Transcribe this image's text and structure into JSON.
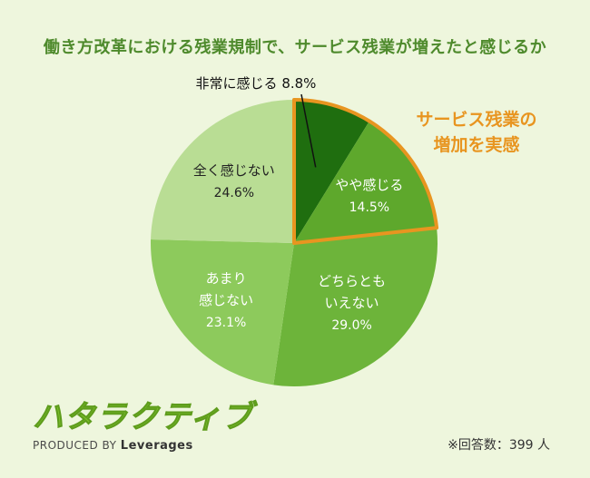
{
  "title": "働き方改革における残業規制で、サービス残業が増えたと感じるか",
  "annotation": [
    "サービス残業の",
    "増加を実感"
  ],
  "logo": {
    "mark": "ハタラクティブ",
    "produced_by": "PRODUCED BY",
    "brand": "Leverages"
  },
  "respondents": "※回答数：399 人",
  "colors": {
    "highlight": "#e89520",
    "background": "#eef6dd"
  },
  "chart_data": {
    "type": "pie",
    "title": "働き方改革における残業規制で、サービス残業が増えたと感じるか",
    "start": "12 o'clock, clockwise",
    "slices": [
      {
        "label": [
          "非常に感じる"
        ],
        "value": 8.8,
        "value_text": "8.8%",
        "color": "#1f6e0f",
        "text_color": "#111111"
      },
      {
        "label": [
          "やや感じる"
        ],
        "value": 14.5,
        "value_text": "14.5%",
        "color": "#5ea82c",
        "text_color": "#ffffff"
      },
      {
        "label": [
          "どちらとも",
          "いえない"
        ],
        "value": 29.0,
        "value_text": "29.0%",
        "color": "#6db43a",
        "text_color": "#ffffff"
      },
      {
        "label": [
          "あまり",
          "感じない"
        ],
        "value": 23.1,
        "value_text": "23.1%",
        "color": "#8dca5c",
        "text_color": "#ffffff"
      },
      {
        "label": [
          "全く感じない"
        ],
        "value": 24.6,
        "value_text": "24.6%",
        "color": "#b9dd94",
        "text_color": "#222222"
      }
    ],
    "highlighted_slices": [
      "非常に感じる",
      "やや感じる"
    ]
  }
}
